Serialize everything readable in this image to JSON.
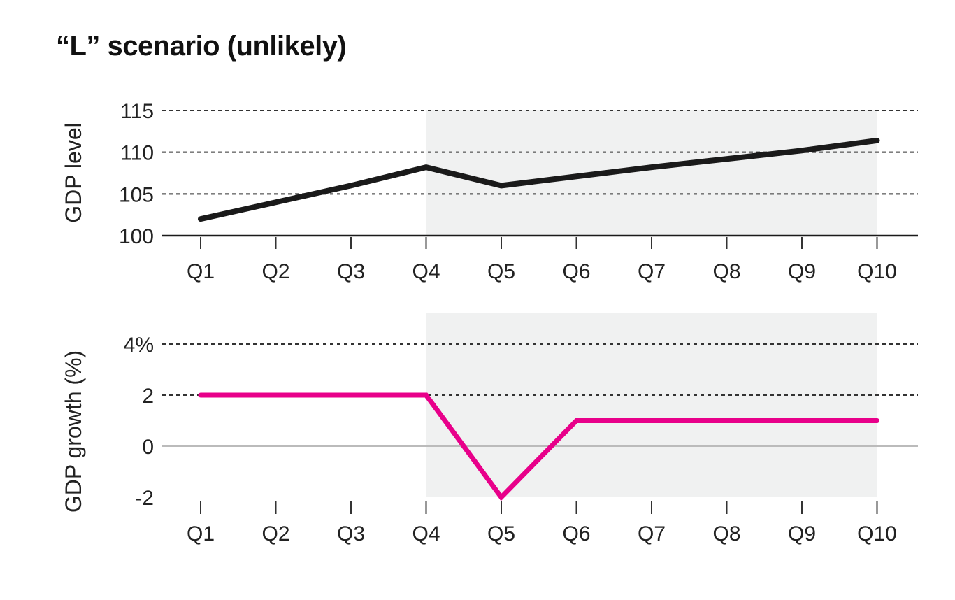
{
  "title": "“L” scenario (unlikely)",
  "colors": {
    "level_line": "#1a1a1a",
    "growth_line": "#e8008a",
    "shade": "#f0f1f1",
    "grid": "#333333",
    "zero_line": "#bbbbbb"
  },
  "chart_data": [
    {
      "type": "line",
      "ylabel": "GDP level",
      "categories": [
        "Q1",
        "Q2",
        "Q3",
        "Q4",
        "Q5",
        "Q6",
        "Q7",
        "Q8",
        "Q9",
        "Q10"
      ],
      "series": [
        {
          "values": [
            102,
            104,
            106,
            108.2,
            106,
            107.1,
            108.2,
            109.2,
            110.2,
            111.4
          ]
        }
      ],
      "ylim": [
        100,
        115
      ],
      "yticks": [
        100,
        105,
        110,
        115
      ],
      "ytick_labels": [
        "100",
        "105",
        "110",
        "115"
      ],
      "shaded_range": [
        "Q4",
        "Q10"
      ],
      "grid": "dashed horizontal"
    },
    {
      "type": "line",
      "ylabel": "GDP growth (%)",
      "categories": [
        "Q1",
        "Q2",
        "Q3",
        "Q4",
        "Q5",
        "Q6",
        "Q7",
        "Q8",
        "Q9",
        "Q10"
      ],
      "series": [
        {
          "values": [
            2,
            2,
            2,
            2,
            -2,
            1,
            1,
            1,
            1,
            1
          ]
        }
      ],
      "ylim": [
        -2,
        4
      ],
      "yticks": [
        -2,
        0,
        2,
        4
      ],
      "ytick_labels": [
        "-2",
        "0",
        "2",
        "4%"
      ],
      "shaded_range": [
        "Q4",
        "Q10"
      ],
      "grid": "dashed horizontal"
    }
  ]
}
